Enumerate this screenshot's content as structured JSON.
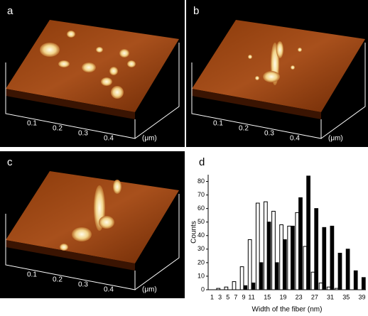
{
  "panels": [
    {
      "label": "a",
      "ticks": [
        "0.1",
        "0.2",
        "0.3",
        "0.4"
      ],
      "unit": "(μm)"
    },
    {
      "label": "b",
      "ticks": [
        "0.1",
        "0.2",
        "0.3",
        "0.4"
      ],
      "unit": "(μm)"
    },
    {
      "label": "c",
      "ticks": [
        "0.1",
        "0.2",
        "0.3",
        "0.4"
      ],
      "unit": "(μm)"
    }
  ],
  "chart_data": {
    "type": "bar",
    "label": "d",
    "x_label": "Width of the fiber (nm)",
    "y_label": "Counts",
    "categories": [
      1,
      3,
      5,
      7,
      9,
      11,
      null,
      15,
      null,
      19,
      null,
      23,
      null,
      27,
      null,
      31,
      null,
      35,
      null,
      39
    ],
    "series": [
      {
        "color": "#ffffff",
        "values": [
          0,
          1,
          2,
          6,
          17,
          37,
          64,
          65,
          58,
          48,
          47,
          57,
          32,
          13,
          5,
          2,
          1,
          0,
          0,
          0
        ]
      },
      {
        "color": "#000000",
        "values": [
          0,
          0,
          0,
          0,
          3,
          5,
          20,
          50,
          20,
          37,
          47,
          68,
          84,
          60,
          46,
          47,
          27,
          30,
          14,
          9
        ]
      }
    ],
    "ylim": [
      0,
      85
    ],
    "yticks": [
      0,
      10,
      20,
      30,
      40,
      50,
      60,
      70,
      80
    ]
  }
}
